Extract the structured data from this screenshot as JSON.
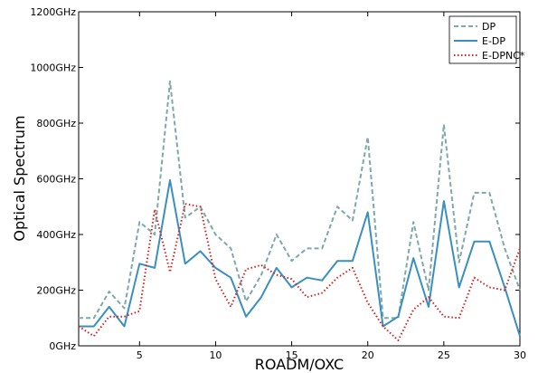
{
  "chart_data": {
    "type": "line",
    "title": "",
    "xlabel": "ROADM/OXC",
    "ylabel": "Optical Spectrum",
    "xlim": [
      1,
      30
    ],
    "ylim": [
      0,
      1200
    ],
    "x_ticks": [
      5,
      10,
      15,
      20,
      25,
      30
    ],
    "y_ticks": [
      0,
      200,
      400,
      600,
      800,
      1000,
      1200
    ],
    "y_tick_labels": [
      "0GHz",
      "200GHz",
      "400GHz",
      "600GHz",
      "800GHz",
      "1000GHz",
      "1200GHz"
    ],
    "grid": false,
    "legend_position": "top-right",
    "x": [
      1,
      2,
      3,
      4,
      5,
      6,
      7,
      8,
      9,
      10,
      11,
      12,
      13,
      14,
      15,
      16,
      17,
      18,
      19,
      20,
      21,
      22,
      23,
      24,
      25,
      26,
      27,
      28,
      29,
      30
    ],
    "series": [
      {
        "name": "DP",
        "style": "dashed",
        "color": "#7fa8a8",
        "values": [
          100,
          100,
          195,
          135,
          445,
          400,
          950,
          460,
          500,
          400,
          350,
          160,
          255,
          400,
          305,
          350,
          350,
          500,
          450,
          750,
          100,
          100,
          445,
          200,
          795,
          300,
          550,
          550,
          350,
          200
        ]
      },
      {
        "name": "E-DP",
        "style": "solid",
        "color": "#3a8fc0",
        "values": [
          70,
          70,
          140,
          70,
          295,
          280,
          595,
          295,
          340,
          280,
          245,
          105,
          175,
          280,
          210,
          245,
          235,
          305,
          305,
          480,
          70,
          105,
          315,
          140,
          520,
          210,
          375,
          375,
          210,
          35
        ]
      },
      {
        "name": "E-DPNC*",
        "style": "dotted",
        "color": "#d42020",
        "values": [
          70,
          35,
          105,
          105,
          125,
          490,
          265,
          510,
          500,
          240,
          140,
          275,
          290,
          255,
          240,
          175,
          190,
          245,
          280,
          155,
          70,
          20,
          130,
          175,
          105,
          100,
          245,
          210,
          200,
          350
        ]
      }
    ]
  }
}
